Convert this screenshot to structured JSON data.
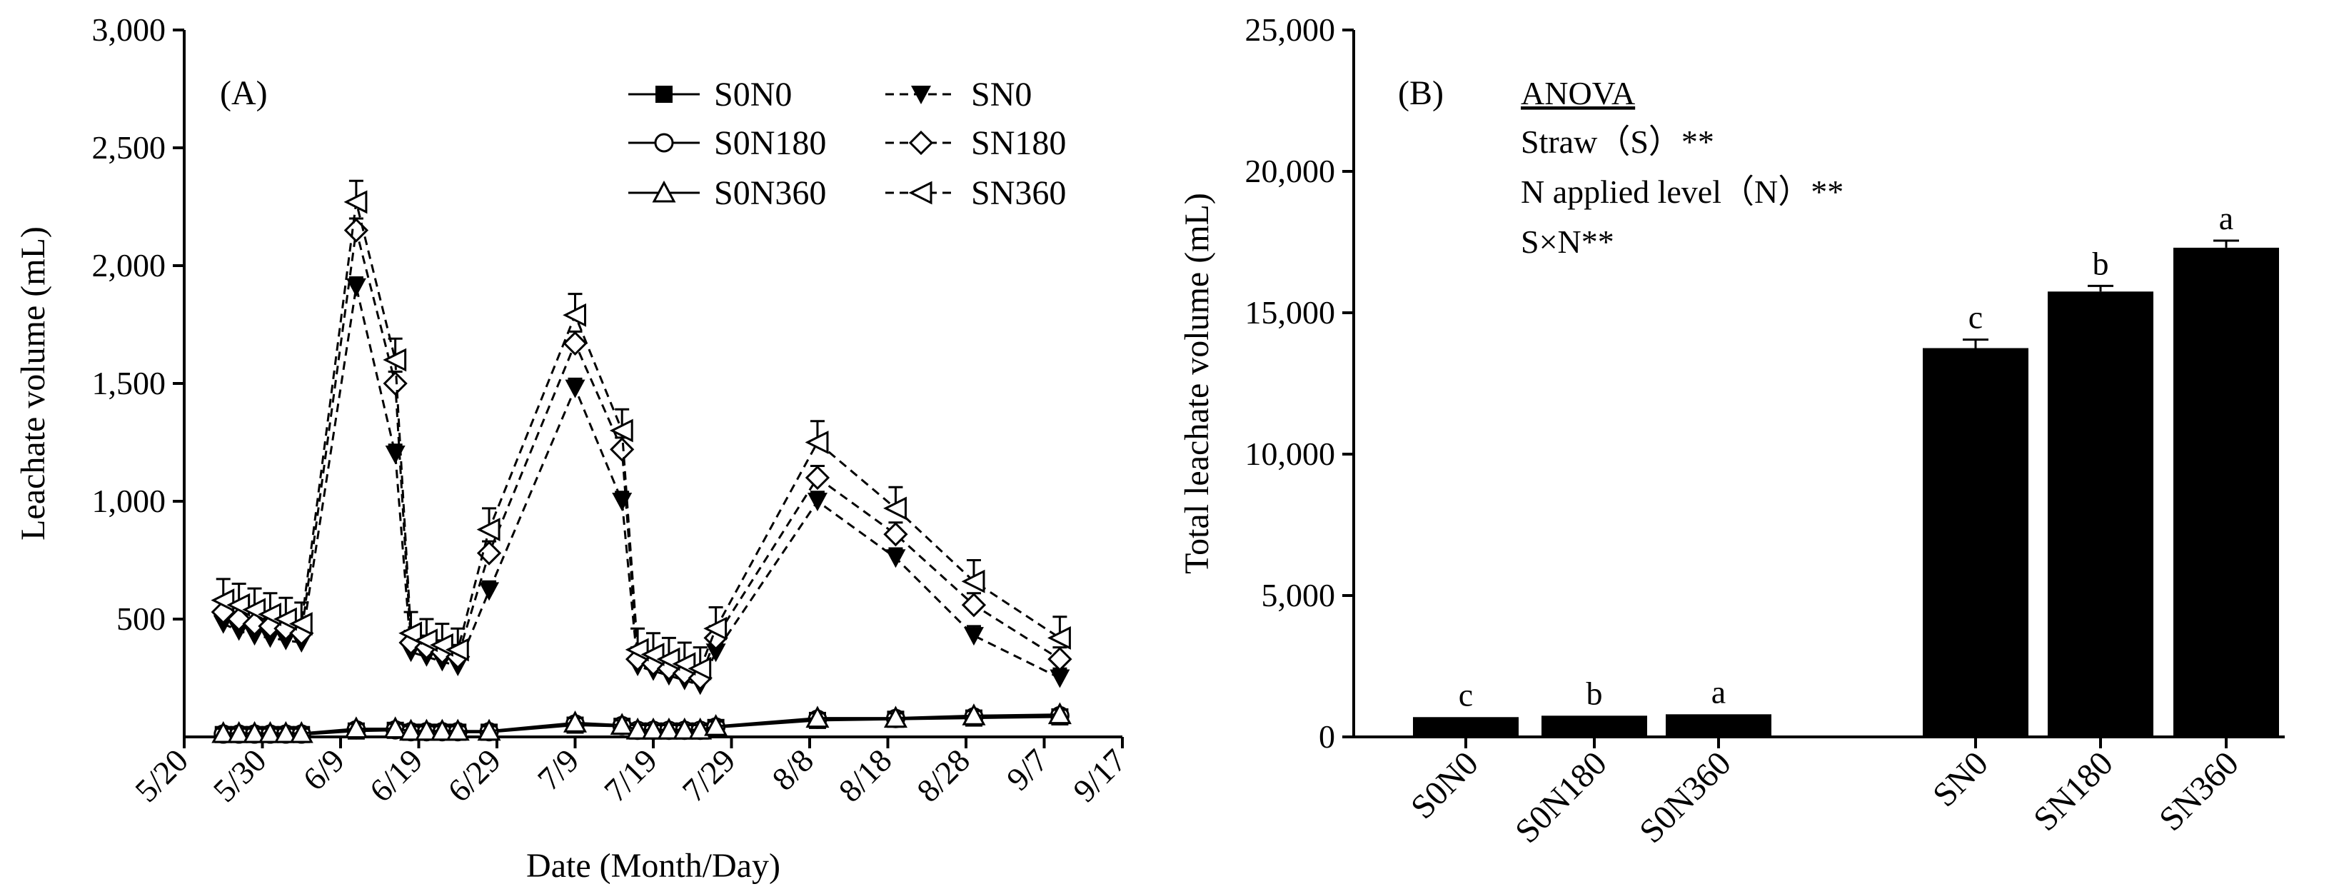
{
  "chart_data": [
    {
      "type": "line",
      "panel_label": "(A)",
      "xlabel": "Date (Month/Day)",
      "ylabel": "Leachate volume (mL)",
      "ylim": [
        0,
        3000
      ],
      "yticks": [
        500,
        1000,
        1500,
        2000,
        2500,
        3000
      ],
      "ytick_labels": [
        "500",
        "1,000",
        "1,500",
        "2,000",
        "2,500",
        "3,000"
      ],
      "xlim": [
        0,
        120
      ],
      "xticks": [
        0,
        10,
        20,
        30,
        40,
        50,
        60,
        70,
        80,
        90,
        100,
        110,
        120
      ],
      "xtick_labels": [
        "5/20",
        "5/30",
        "6/9",
        "6/19",
        "6/29",
        "7/9",
        "7/19",
        "7/29",
        "8/8",
        "8/18",
        "8/28",
        "9/7",
        "9/17"
      ],
      "legend_position": "top-right",
      "x": [
        5,
        7,
        9,
        11,
        13,
        15,
        22,
        27,
        29,
        31,
        33,
        35,
        39,
        50,
        56,
        58,
        60,
        62,
        64,
        66,
        68,
        81,
        91,
        101,
        112
      ],
      "series": [
        {
          "name": "S0N0",
          "marker": "square-filled",
          "dash": false,
          "error_bar": 0,
          "values": [
            10,
            10,
            10,
            10,
            10,
            10,
            25,
            28,
            20,
            20,
            20,
            20,
            20,
            50,
            45,
            25,
            25,
            25,
            25,
            25,
            40,
            70,
            75,
            80,
            85
          ]
        },
        {
          "name": "S0N180",
          "marker": "circle-open",
          "dash": false,
          "error_bar": 0,
          "values": [
            12,
            12,
            12,
            12,
            12,
            12,
            30,
            30,
            22,
            22,
            22,
            22,
            22,
            55,
            48,
            28,
            28,
            28,
            28,
            28,
            42,
            75,
            78,
            85,
            90
          ]
        },
        {
          "name": "S0N360",
          "marker": "triangle-up-open",
          "dash": false,
          "error_bar": 20,
          "values": [
            15,
            15,
            15,
            15,
            15,
            15,
            35,
            35,
            25,
            25,
            25,
            25,
            25,
            60,
            50,
            30,
            30,
            30,
            30,
            30,
            45,
            80,
            80,
            90,
            95
          ]
        },
        {
          "name": "SN0",
          "marker": "triangle-down-filled",
          "dash": true,
          "error_bar": 40,
          "values": [
            480,
            450,
            430,
            420,
            410,
            400,
            1910,
            1200,
            360,
            340,
            320,
            300,
            620,
            1480,
            1000,
            300,
            280,
            260,
            240,
            220,
            360,
            1000,
            760,
            430,
            250
          ]
        },
        {
          "name": "SN180",
          "marker": "diamond-open",
          "dash": true,
          "error_bar": 50,
          "values": [
            530,
            500,
            480,
            470,
            460,
            440,
            2150,
            1500,
            400,
            380,
            360,
            340,
            780,
            1670,
            1220,
            330,
            310,
            290,
            270,
            250,
            420,
            1100,
            860,
            560,
            330
          ]
        },
        {
          "name": "SN360",
          "marker": "triangle-left-open",
          "dash": true,
          "error_bar": 90,
          "values": [
            580,
            560,
            540,
            520,
            500,
            480,
            2270,
            1600,
            440,
            410,
            390,
            370,
            880,
            1790,
            1300,
            370,
            350,
            330,
            310,
            290,
            460,
            1250,
            970,
            660,
            420
          ]
        }
      ]
    },
    {
      "type": "bar",
      "panel_label": "(B)",
      "xlabel": "",
      "ylabel": "Total leachate volume (mL)",
      "ylim": [
        0,
        25000
      ],
      "yticks": [
        0,
        5000,
        10000,
        15000,
        20000,
        25000
      ],
      "ytick_labels": [
        "0",
        "5,000",
        "10,000",
        "15,000",
        "20,000",
        "25,000"
      ],
      "categories": [
        "S0N0",
        "S0N180",
        "S0N360",
        "SN0",
        "SN180",
        "SN360"
      ],
      "values": [
        700,
        750,
        800,
        13750,
        15750,
        17300
      ],
      "errors": [
        0,
        0,
        0,
        300,
        200,
        250
      ],
      "significance": [
        "c",
        "b",
        "a",
        "c",
        "b",
        "a"
      ],
      "bar_color": "#000000",
      "anova": {
        "title": "ANOVA",
        "lines": [
          "Straw（S）**",
          "N applied level（N）**",
          "S×N**"
        ]
      }
    }
  ]
}
